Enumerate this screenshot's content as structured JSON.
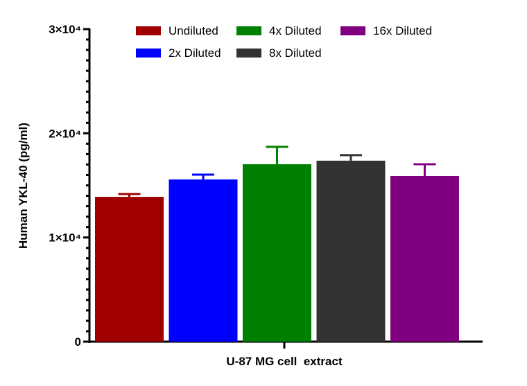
{
  "chart_data": {
    "type": "bar",
    "title": "",
    "xlabel": "U-87 MG cell  extract",
    "ylabel": "Human YKL-40 (pg/ml)",
    "ylim": [
      0,
      30000
    ],
    "yticks": [
      {
        "value": 0,
        "label": "0"
      },
      {
        "value": 10000,
        "label": "1×10⁴"
      },
      {
        "value": 20000,
        "label": "2×10⁴"
      },
      {
        "value": 30000,
        "label": "3×10⁴"
      }
    ],
    "minor_tick_step": 1000,
    "grid": false,
    "legend_position": "top",
    "series": [
      {
        "name": "Undiluted",
        "value": 13900,
        "error": 270,
        "color": "#a00000"
      },
      {
        "name": "2x Diluted",
        "value": 15570,
        "error": 460,
        "color": "#0000ff"
      },
      {
        "name": "4x Diluted",
        "value": 17030,
        "error": 1670,
        "color": "#008000"
      },
      {
        "name": "8x Diluted",
        "value": 17370,
        "error": 530,
        "color": "#333333"
      },
      {
        "name": "16x Diluted",
        "value": 15900,
        "error": 1130,
        "color": "#800080"
      }
    ]
  }
}
